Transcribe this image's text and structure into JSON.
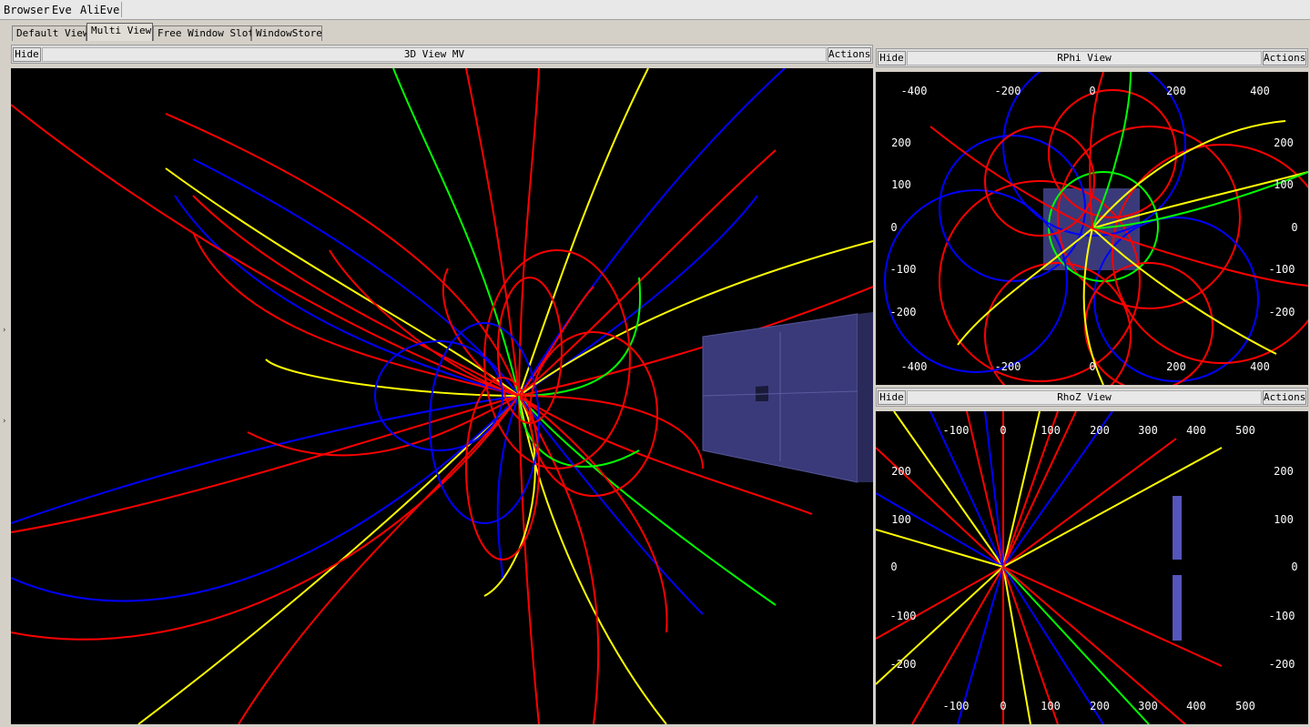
{
  "menubar": {
    "browser": "Browser",
    "eve": "Eve",
    "alieve": "AliEve"
  },
  "tabs": [
    {
      "label": "Default View"
    },
    {
      "label": "Multi View"
    },
    {
      "label": "Free Window Slot"
    },
    {
      "label": "WindowStore"
    }
  ],
  "view3d": {
    "hide": "Hide",
    "title": "3D View MV",
    "actions": "Actions"
  },
  "rphi": {
    "hide": "Hide",
    "title": "RPhi View",
    "actions": "Actions",
    "top_ticks": [
      "-400",
      "-200",
      "0",
      "200",
      "400"
    ],
    "bottom_ticks": [
      "-400",
      "-200",
      "0",
      "200",
      "400"
    ],
    "left_ticks": [
      "200",
      "100",
      "0",
      "-100",
      "-200"
    ],
    "right_ticks": [
      "200",
      "100",
      "0",
      "-100",
      "-200"
    ]
  },
  "rhoz": {
    "hide": "Hide",
    "title": "RhoZ View",
    "actions": "Actions",
    "top_ticks": [
      "-100",
      "0",
      "100",
      "200",
      "300",
      "400",
      "500"
    ],
    "bottom_ticks": [
      "-100",
      "0",
      "100",
      "200",
      "300",
      "400",
      "500"
    ],
    "left_ticks": [
      "200",
      "100",
      "0",
      "-100",
      "-200"
    ],
    "right_ticks": [
      "200",
      "100",
      "0",
      "-100",
      "-200"
    ]
  },
  "colors": {
    "track_primary": "#ff0000",
    "track_negative": "#0000ff",
    "track_yellow": "#ffff00",
    "track_green": "#00ff00",
    "detector": "#3a3a7a",
    "background": "#000000"
  }
}
